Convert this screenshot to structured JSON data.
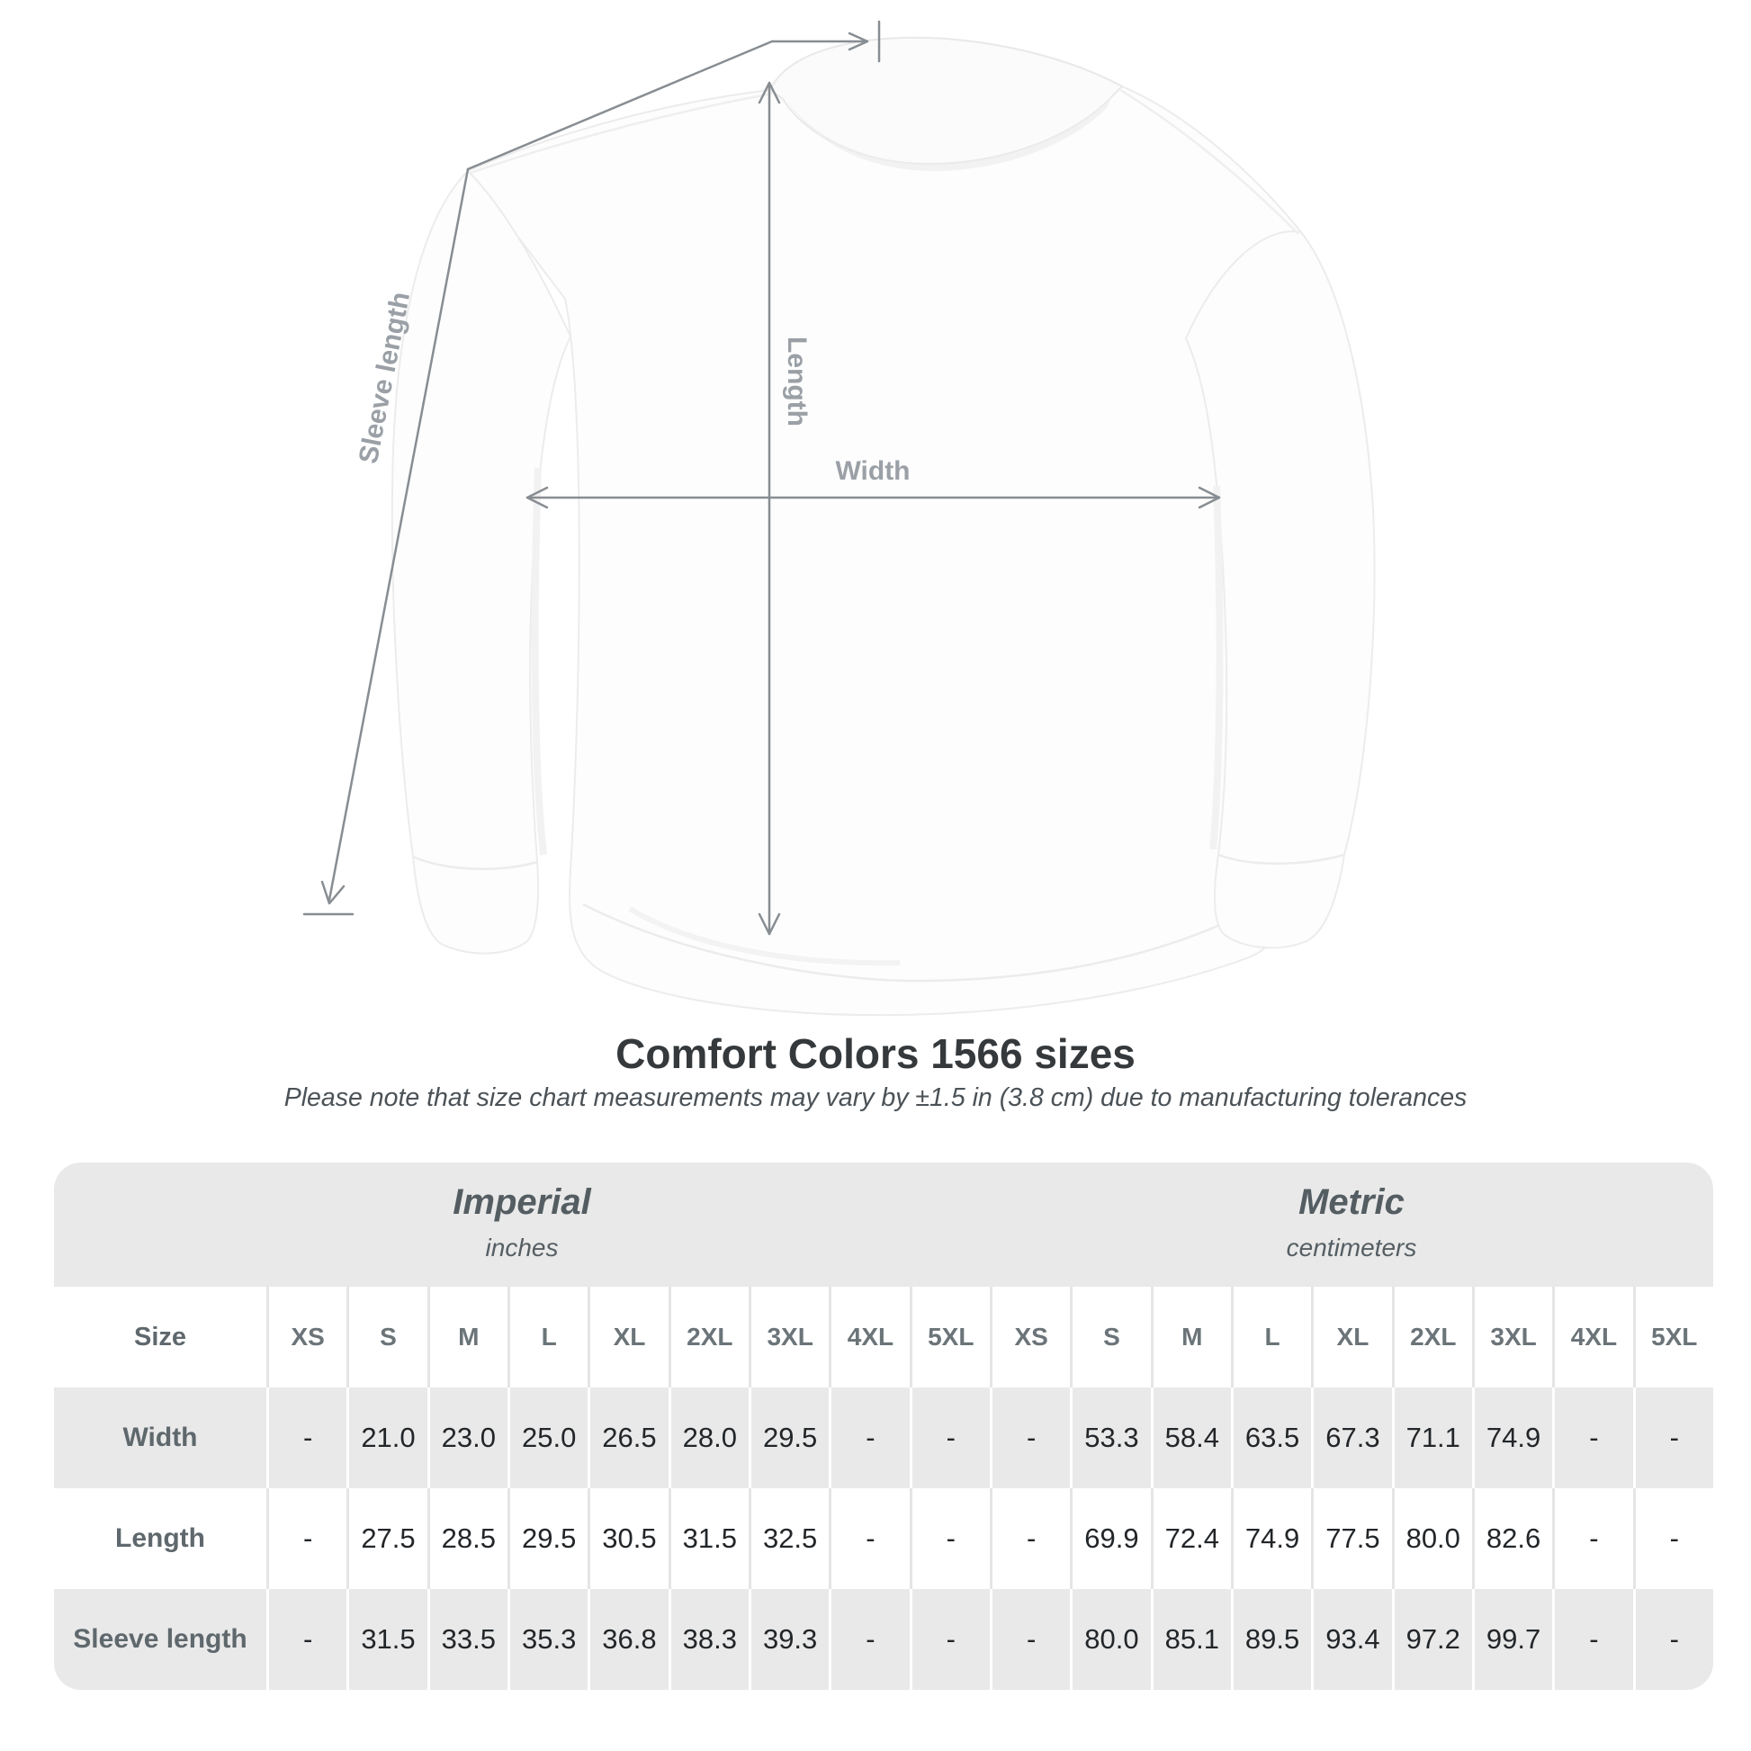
{
  "diagram": {
    "length_label": "Length",
    "width_label": "Width",
    "sleeve_label": "Sleeve length"
  },
  "heading": {
    "title": "Comfort Colors 1566 sizes",
    "note": "Please note that size chart measurements may vary by ±1.5 in (3.8 cm) due to manufacturing tolerances"
  },
  "table": {
    "unit_groups": [
      {
        "label": "Imperial",
        "sublabel": "inches"
      },
      {
        "label": "Metric",
        "sublabel": "centimeters"
      }
    ],
    "size_column_header": "Size",
    "sizes": [
      "XS",
      "S",
      "M",
      "L",
      "XL",
      "2XL",
      "3XL",
      "4XL",
      "5XL"
    ],
    "rows": [
      {
        "label": "Width",
        "imperial": [
          "-",
          "21.0",
          "23.0",
          "25.0",
          "26.5",
          "28.0",
          "29.5",
          "-",
          "-"
        ],
        "metric": [
          "-",
          "53.3",
          "58.4",
          "63.5",
          "67.3",
          "71.1",
          "74.9",
          "-",
          "-"
        ]
      },
      {
        "label": "Length",
        "imperial": [
          "-",
          "27.5",
          "28.5",
          "29.5",
          "30.5",
          "31.5",
          "32.5",
          "-",
          "-"
        ],
        "metric": [
          "-",
          "69.9",
          "72.4",
          "74.9",
          "77.5",
          "80.0",
          "82.6",
          "-",
          "-"
        ]
      },
      {
        "label": "Sleeve length",
        "imperial": [
          "-",
          "31.5",
          "33.5",
          "35.3",
          "36.8",
          "38.3",
          "39.3",
          "-",
          "-"
        ],
        "metric": [
          "-",
          "80.0",
          "85.1",
          "89.5",
          "93.4",
          "97.2",
          "99.7",
          "-",
          "-"
        ]
      }
    ]
  },
  "colors": {
    "band_gray": "#e9e9e9",
    "annotation_line": "#878d92",
    "annotation_label": "#9aa0a6",
    "title_text": "#35393c",
    "value_text": "#232629"
  }
}
